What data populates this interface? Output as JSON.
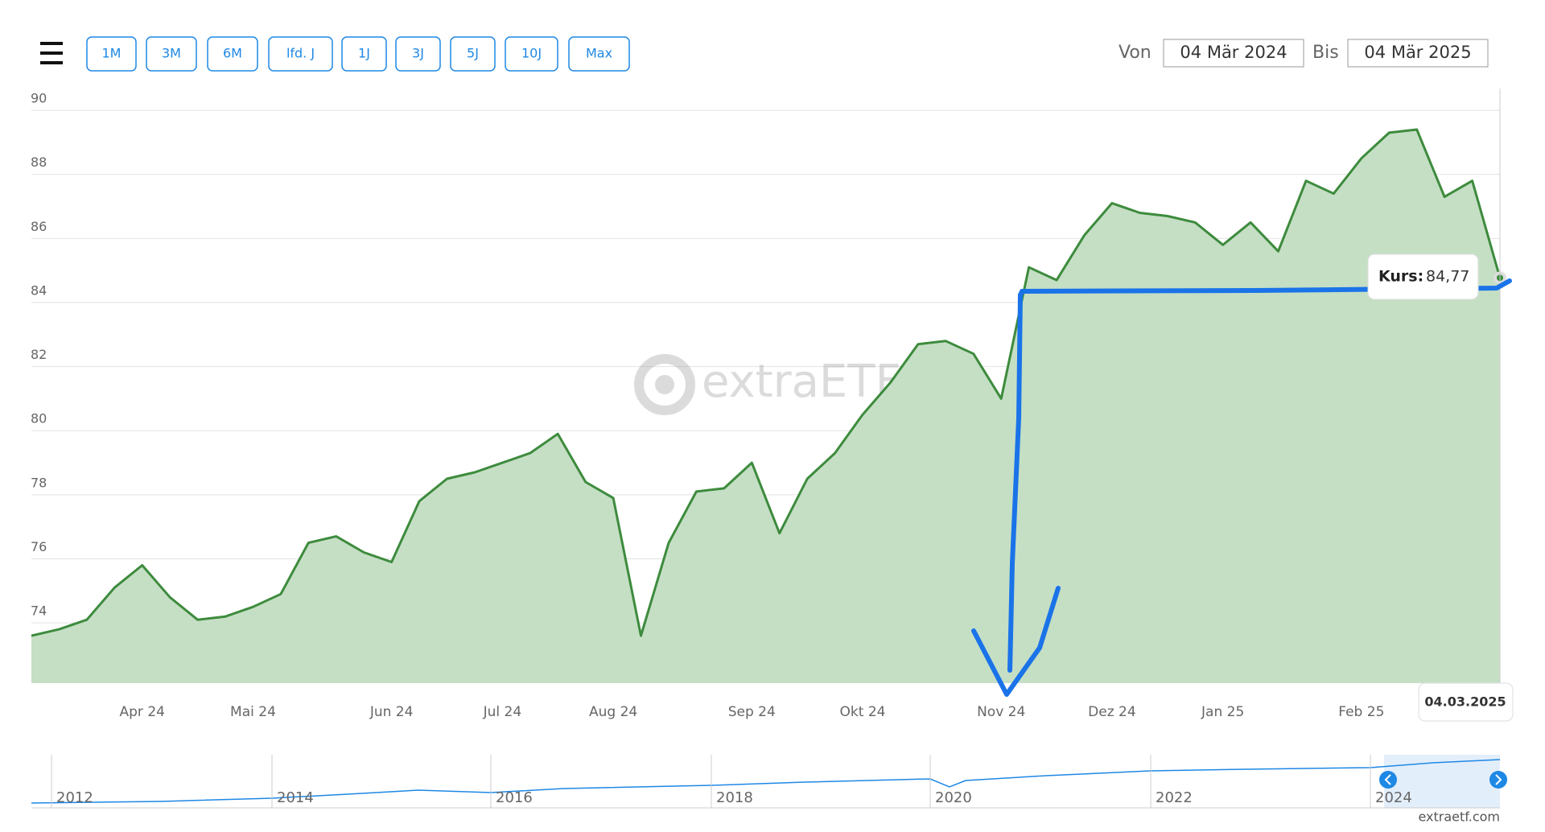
{
  "chart_data": {
    "type": "area",
    "range_buttons": [
      "1M",
      "3M",
      "6M",
      "lfd. J",
      "1J",
      "3J",
      "5J",
      "10J",
      "Max"
    ],
    "active_button": 4,
    "from_label": "Von",
    "from_date": "04 Mär 2024",
    "to_label": "Bis",
    "to_date": "04 Mär 2025",
    "watermark": "extraETF",
    "categories": [
      null,
      null,
      null,
      null,
      "Apr 24",
      null,
      null,
      null,
      "Mai 24",
      null,
      null,
      null,
      null,
      "Jun 24",
      null,
      null,
      null,
      "Jul 24",
      null,
      null,
      null,
      "Aug 24",
      null,
      null,
      null,
      null,
      "Sep 24",
      null,
      null,
      null,
      "Okt 24",
      null,
      null,
      null,
      null,
      "Nov 24",
      null,
      null,
      null,
      "Dez 24",
      null,
      null,
      null,
      "Jan 25",
      null,
      null,
      null,
      null,
      "Feb 25",
      null,
      null,
      null,
      null,
      null
    ],
    "values": [
      73.6,
      73.8,
      74.1,
      75.1,
      75.8,
      74.8,
      74.1,
      74.2,
      74.5,
      74.9,
      76.5,
      76.7,
      76.2,
      75.9,
      77.8,
      78.5,
      78.7,
      79.0,
      79.3,
      79.9,
      78.4,
      77.9,
      73.6,
      76.5,
      78.1,
      78.2,
      79.0,
      76.8,
      78.5,
      79.3,
      80.5,
      81.5,
      82.7,
      82.8,
      82.4,
      81.0,
      85.1,
      84.7,
      86.1,
      87.1,
      86.8,
      86.7,
      86.5,
      85.8,
      86.5,
      85.6,
      87.8,
      87.4,
      88.5,
      89.3,
      89.4,
      87.3,
      87.8,
      84.77
    ],
    "color": "#3d8b3d",
    "fill": "#c5dfc5",
    "ylim": [
      72.12,
      90.68
    ],
    "yticks": [
      74,
      76,
      78,
      80,
      82,
      84,
      86,
      88,
      90
    ],
    "grid": true,
    "tooltip_label": "Kurs:",
    "tooltip_value": "84,77",
    "crosshair_date": "04.03.2025",
    "navigator_years": [
      "2012",
      "2014",
      "2016",
      "2018",
      "2020",
      "2022",
      "2024"
    ],
    "footer": "extraetf.com"
  }
}
